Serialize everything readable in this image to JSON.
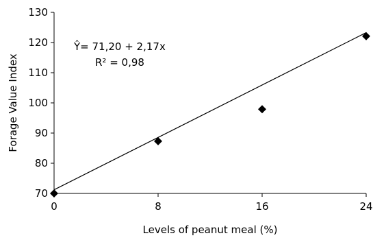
{
  "chart_data": {
    "type": "scatter",
    "xlabel": "Levels of peanut meal (%)",
    "ylabel": "Forage Value Index",
    "x_ticks": [
      "0",
      "8",
      "16",
      "24"
    ],
    "y_ticks": [
      "70",
      "80",
      "90",
      "100",
      "110",
      "120",
      "130"
    ],
    "xlim": [
      0,
      24
    ],
    "ylim": [
      70,
      130
    ],
    "grid": false,
    "series": [
      {
        "marker": "diamond",
        "color": "#000000",
        "points": [
          {
            "x": 0,
            "y": 70.0
          },
          {
            "x": 8,
            "y": 87.3
          },
          {
            "x": 16,
            "y": 97.9
          },
          {
            "x": 24,
            "y": 122.1
          }
        ]
      }
    ],
    "trendline": {
      "intercept": 71.2,
      "slope": 2.17,
      "equation": "Ŷ= 71,20 + 2,17x",
      "r_squared": "R² = 0,98"
    }
  }
}
